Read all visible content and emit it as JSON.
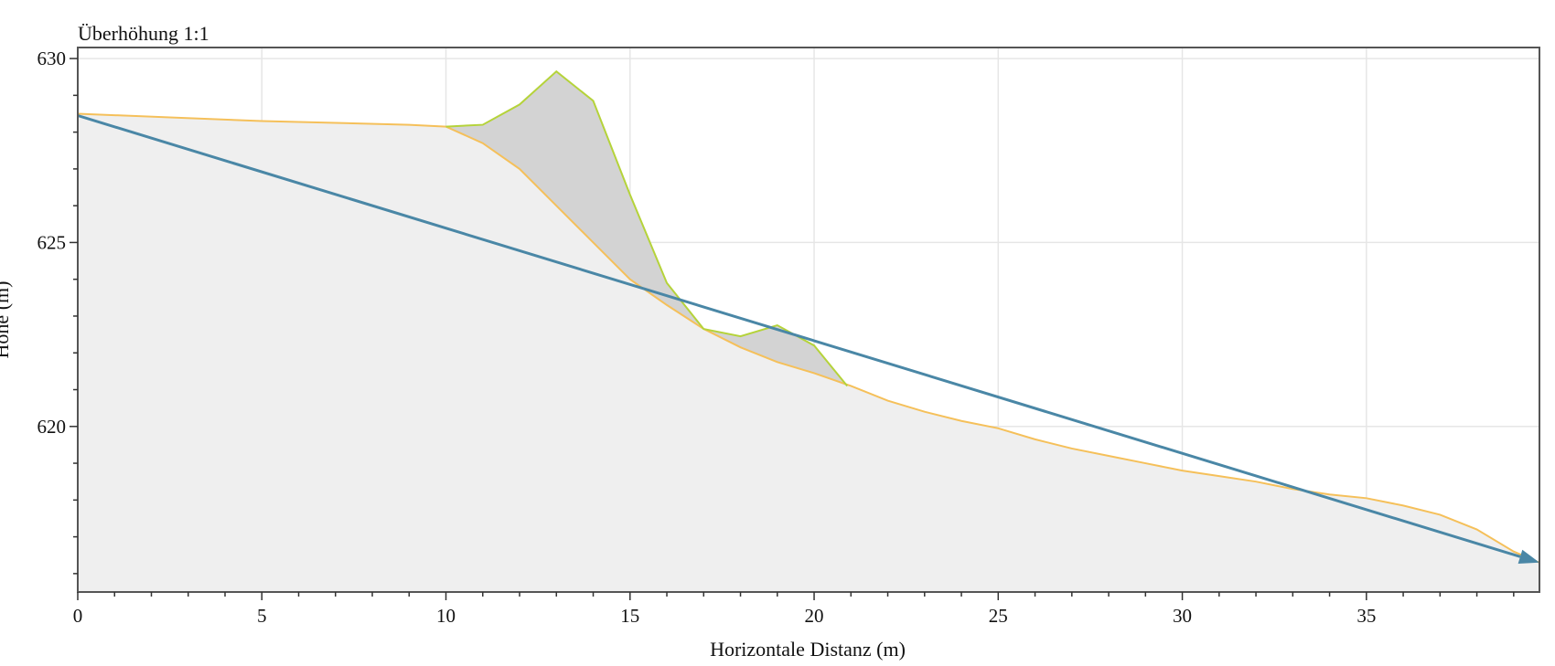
{
  "chart_data": {
    "type": "area",
    "annotation": "Überhöhung 1:1",
    "xlabel": "Horizontale Distanz (m)",
    "ylabel": "Höhe (m)",
    "xlim": [
      0,
      39.7
    ],
    "ylim": [
      615.5,
      630.3
    ],
    "xticks": [
      0,
      5,
      10,
      15,
      20,
      25,
      30,
      35
    ],
    "yticks": [
      620,
      625,
      630
    ],
    "grid": true,
    "colors": {
      "terrain_fill": "#efefef",
      "terrain_line": "#f5c05a",
      "deposit_fill": "#d3d3d3",
      "deposit_line": "#b5d33a",
      "trajectory": "#4a87a6",
      "grid": "#e6e6e6",
      "frame": "#555555"
    },
    "terrain": [
      {
        "x": 0,
        "y": 628.5
      },
      {
        "x": 5,
        "y": 628.3
      },
      {
        "x": 9,
        "y": 628.2
      },
      {
        "x": 10,
        "y": 628.15
      },
      {
        "x": 11,
        "y": 627.7
      },
      {
        "x": 12,
        "y": 627.0
      },
      {
        "x": 13,
        "y": 626.0
      },
      {
        "x": 14,
        "y": 625.0
      },
      {
        "x": 15,
        "y": 624.0
      },
      {
        "x": 16,
        "y": 623.3
      },
      {
        "x": 17,
        "y": 622.65
      },
      {
        "x": 18,
        "y": 622.15
      },
      {
        "x": 19,
        "y": 621.75
      },
      {
        "x": 20,
        "y": 621.45
      },
      {
        "x": 21,
        "y": 621.1
      },
      {
        "x": 22,
        "y": 620.7
      },
      {
        "x": 23,
        "y": 620.4
      },
      {
        "x": 24,
        "y": 620.15
      },
      {
        "x": 25,
        "y": 619.95
      },
      {
        "x": 26,
        "y": 619.65
      },
      {
        "x": 27,
        "y": 619.4
      },
      {
        "x": 28,
        "y": 619.2
      },
      {
        "x": 29,
        "y": 619.0
      },
      {
        "x": 30,
        "y": 618.8
      },
      {
        "x": 31,
        "y": 618.65
      },
      {
        "x": 32,
        "y": 618.5
      },
      {
        "x": 33,
        "y": 618.3
      },
      {
        "x": 34,
        "y": 618.15
      },
      {
        "x": 35,
        "y": 618.05
      },
      {
        "x": 36,
        "y": 617.85
      },
      {
        "x": 37,
        "y": 617.6
      },
      {
        "x": 38,
        "y": 617.2
      },
      {
        "x": 39,
        "y": 616.6
      },
      {
        "x": 39.7,
        "y": 616.3
      }
    ],
    "deposit": [
      {
        "x": 10,
        "y": 628.15
      },
      {
        "x": 11,
        "y": 628.2
      },
      {
        "x": 12,
        "y": 628.75
      },
      {
        "x": 13,
        "y": 629.65
      },
      {
        "x": 14,
        "y": 628.85
      },
      {
        "x": 15,
        "y": 626.3
      },
      {
        "x": 16,
        "y": 623.9
      },
      {
        "x": 17,
        "y": 622.65
      },
      {
        "x": 18,
        "y": 622.45
      },
      {
        "x": 19,
        "y": 622.75
      },
      {
        "x": 20,
        "y": 622.2
      },
      {
        "x": 20.9,
        "y": 621.1
      }
    ],
    "trajectory": [
      {
        "x": 0,
        "y": 628.45
      },
      {
        "x": 39.7,
        "y": 616.3
      }
    ]
  }
}
